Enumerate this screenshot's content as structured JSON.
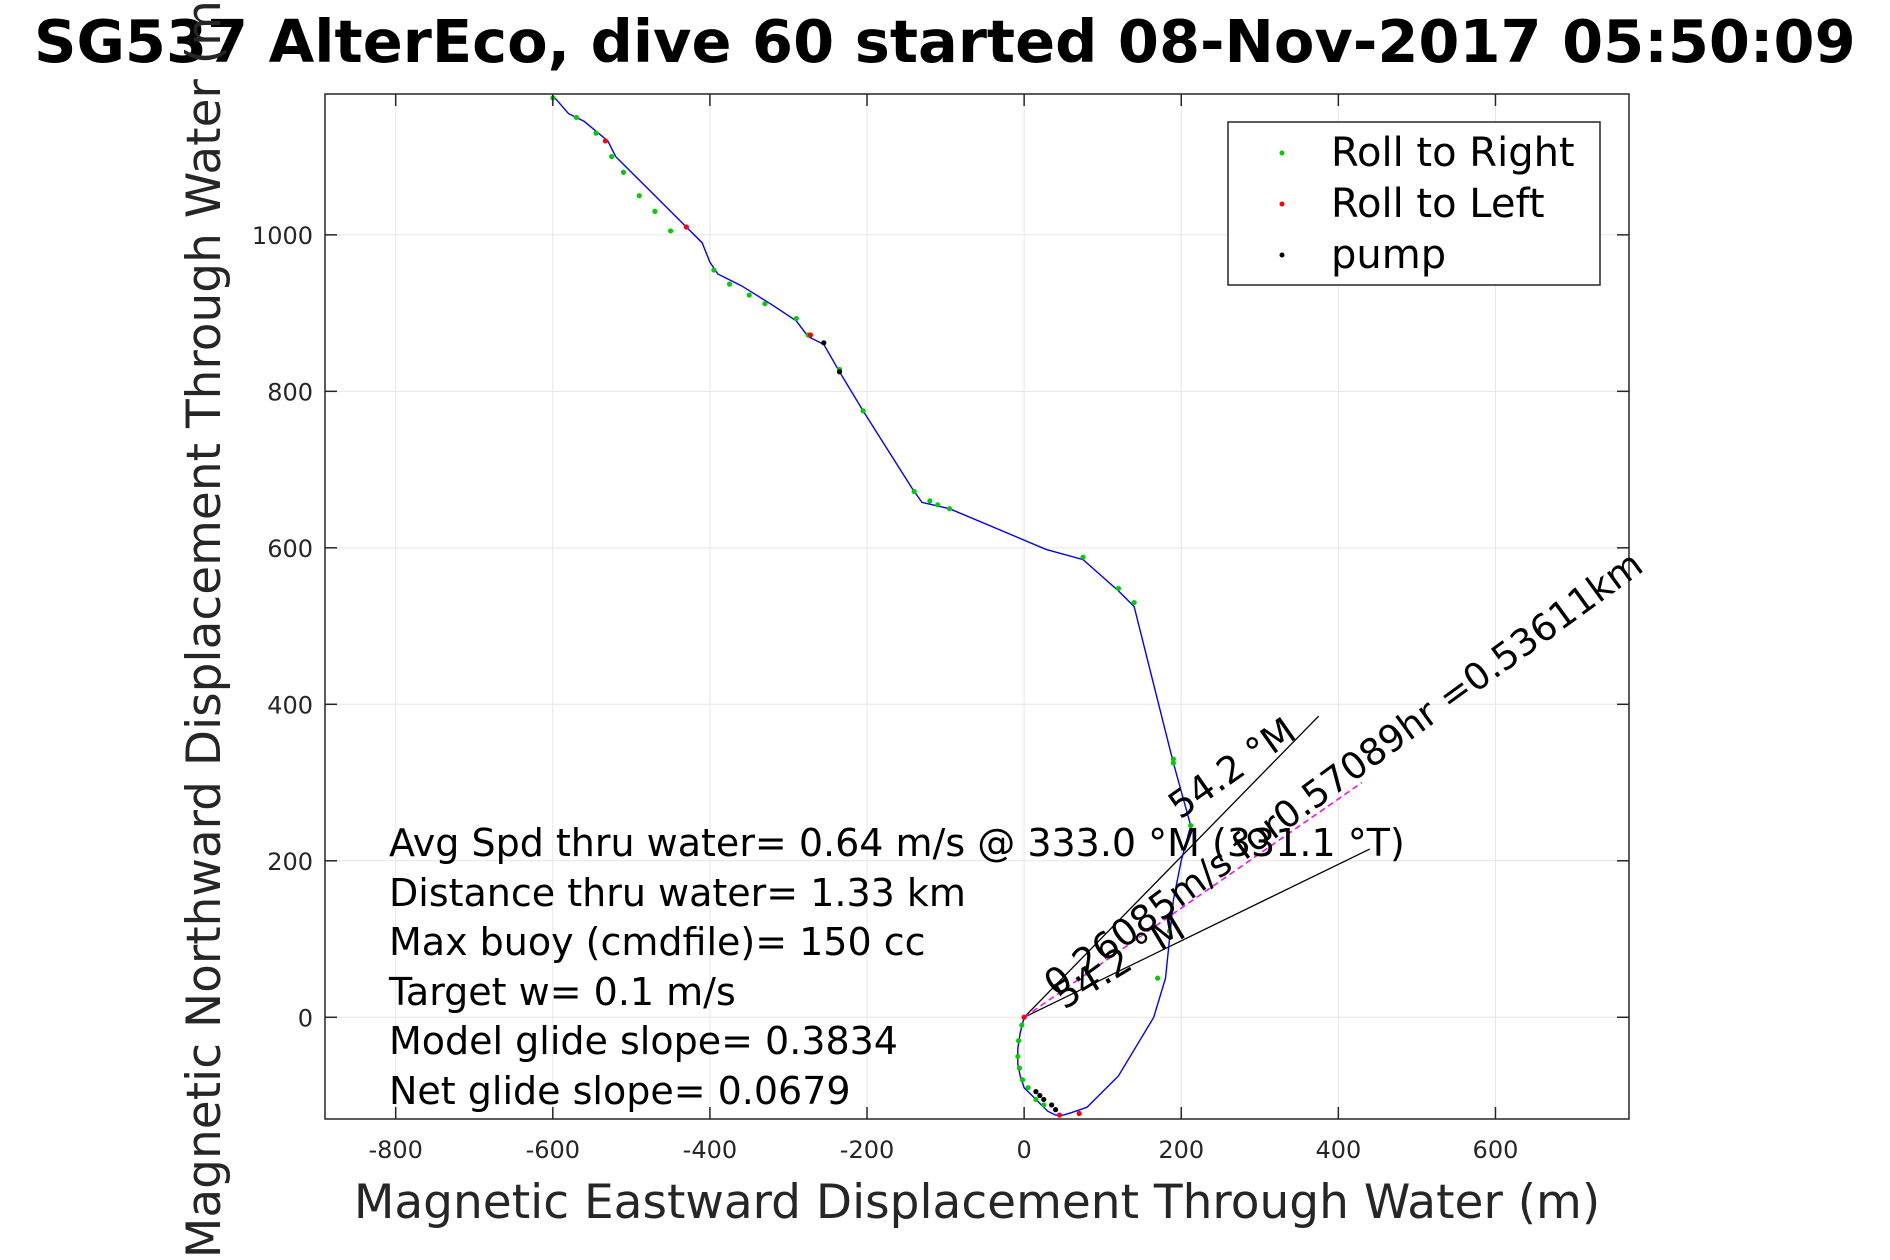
{
  "chart_data": {
    "type": "line",
    "title": "SG537 AlterEco, dive 60 started 08-Nov-2017 05:50:09",
    "xlabel": "Magnetic Eastward Displacement Through Water (m)",
    "ylabel": "Magnetic Northward Displacement Through Water (m)",
    "xlim": [
      -890,
      770
    ],
    "ylim": [
      -130,
      1180
    ],
    "xticks": [
      "-800",
      "-600",
      "-400",
      "-200",
      "0",
      "200",
      "400",
      "600"
    ],
    "yticks": [
      "0",
      "200",
      "400",
      "600",
      "800",
      "1000"
    ],
    "xtick_values": [
      -800,
      -600,
      -400,
      -200,
      0,
      200,
      400,
      600
    ],
    "ytick_values": [
      0,
      200,
      400,
      600,
      800,
      1000
    ],
    "grid": true,
    "legend_position": "top-right",
    "legend": [
      "Roll to Right",
      "Roll to Left",
      "pump"
    ],
    "colors": {
      "track": "#0000ff",
      "roll_right": "#00cc00",
      "roll_left": "#ff0000",
      "pump": "#000000",
      "current": "#ff00ff"
    },
    "track": {
      "x": [
        0,
        -5,
        -8,
        -8,
        -5,
        0,
        10,
        20,
        30,
        40,
        50,
        60,
        80,
        120,
        165,
        180,
        185,
        190,
        200,
        212,
        190,
        140,
        120,
        75,
        28,
        -95,
        -130,
        -142,
        -205,
        -235,
        -255,
        -275,
        -290,
        -320,
        -360,
        -390,
        -400,
        -410,
        -430,
        -480,
        -520,
        -530,
        -560,
        -580,
        -600
      ],
      "y": [
        0,
        -20,
        -40,
        -60,
        -75,
        -90,
        -100,
        -110,
        -120,
        -125,
        -125,
        -122,
        -115,
        -75,
        0,
        50,
        100,
        150,
        200,
        245,
        325,
        525,
        545,
        585,
        598,
        650,
        658,
        675,
        775,
        825,
        860,
        870,
        890,
        910,
        935,
        950,
        965,
        990,
        1010,
        1060,
        1100,
        1120,
        1145,
        1155,
        1178
      ]
    },
    "roll_right_points": {
      "x": [
        -3,
        -7,
        -8,
        -6,
        -2,
        5,
        15,
        25,
        170,
        185,
        190,
        212,
        190,
        140,
        120,
        75,
        -95,
        -110,
        -120,
        -140,
        -205,
        -235,
        -275,
        -290,
        -330,
        -350,
        -375,
        -395,
        -450,
        -470,
        -490,
        -510,
        -525,
        -545,
        -570,
        -600
      ],
      "y": [
        -10,
        -30,
        -50,
        -65,
        -80,
        -90,
        -105,
        -112,
        50,
        110,
        325,
        245,
        330,
        530,
        548,
        588,
        650,
        655,
        660,
        672,
        775,
        828,
        872,
        893,
        912,
        923,
        937,
        955,
        1005,
        1030,
        1050,
        1080,
        1100,
        1130,
        1150,
        1175
      ]
    },
    "roll_left_points": {
      "x": [
        0,
        45,
        70,
        -430,
        -533,
        -272
      ],
      "y": [
        0,
        -125,
        -123,
        1010,
        1120,
        872
      ]
    },
    "pump_points": {
      "x": [
        15,
        20,
        25,
        35,
        40,
        -255,
        -235
      ],
      "y": [
        -95,
        -100,
        -105,
        -112,
        -118,
        862,
        825
      ]
    },
    "current_vector": {
      "x": [
        0,
        430
      ],
      "y": [
        0,
        300
      ]
    },
    "wedge_lines": [
      {
        "x": [
          0,
          375
        ],
        "y": [
          0,
          385
        ]
      },
      {
        "x": [
          0,
          440
        ],
        "y": [
          0,
          215
        ]
      }
    ],
    "annotations": [
      "Avg Spd thru water=  0.64 m/s @ 333.0 °M (331.1 °T)",
      "Distance thru water=  1.33 km",
      "Max buoy (cmdfile)= 150 cc",
      "Target w= 0.1 m/s",
      "Model glide slope= 0.3834",
      "Net glide slope= 0.0679"
    ],
    "slanted_labels": [
      "0.26085m/s for0.57089hr =0.53611km",
      "54.2 °M",
      "54.2 °M"
    ]
  }
}
